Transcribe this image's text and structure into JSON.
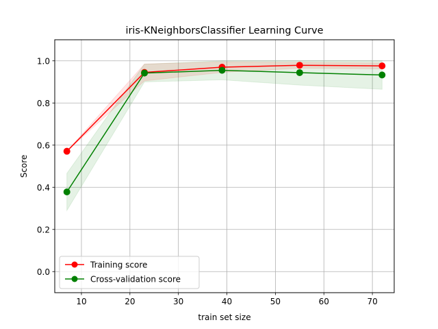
{
  "chart_data": {
    "type": "line",
    "title": "iris-KNeighborsClassifier Learning Curve",
    "xlabel": "train set size",
    "ylabel": "Score",
    "xlim": [
      4.5,
      74.5
    ],
    "ylim": [
      -0.1,
      1.1
    ],
    "x_ticks": [
      10,
      20,
      30,
      40,
      50,
      60,
      70
    ],
    "y_ticks": [
      0.0,
      0.2,
      0.4,
      0.6,
      0.8,
      1.0
    ],
    "x_tick_labels": [
      "10",
      "20",
      "30",
      "40",
      "50",
      "60",
      "70"
    ],
    "y_tick_labels": [
      "0.0",
      "0.2",
      "0.4",
      "0.6",
      "0.8",
      "1.0"
    ],
    "grid": true,
    "legend_position": "lower-left",
    "x": [
      7,
      23,
      39,
      55,
      72
    ],
    "series": [
      {
        "name": "Training score",
        "color": "#ff0000",
        "marker": "circle",
        "values": [
          0.571,
          0.945,
          0.97,
          0.979,
          0.976
        ],
        "band_lower": [
          0.571,
          0.905,
          0.945,
          0.965,
          0.962
        ],
        "band_upper": [
          0.571,
          0.985,
          0.995,
          0.993,
          0.99
        ]
      },
      {
        "name": "Cross-validation score",
        "color": "#008000",
        "marker": "circle",
        "values": [
          0.378,
          0.942,
          0.955,
          0.944,
          0.933
        ],
        "band_lower": [
          0.29,
          0.9,
          0.91,
          0.885,
          0.865
        ],
        "band_upper": [
          0.466,
          0.984,
          1.0,
          1.0,
          1.0
        ]
      }
    ]
  }
}
